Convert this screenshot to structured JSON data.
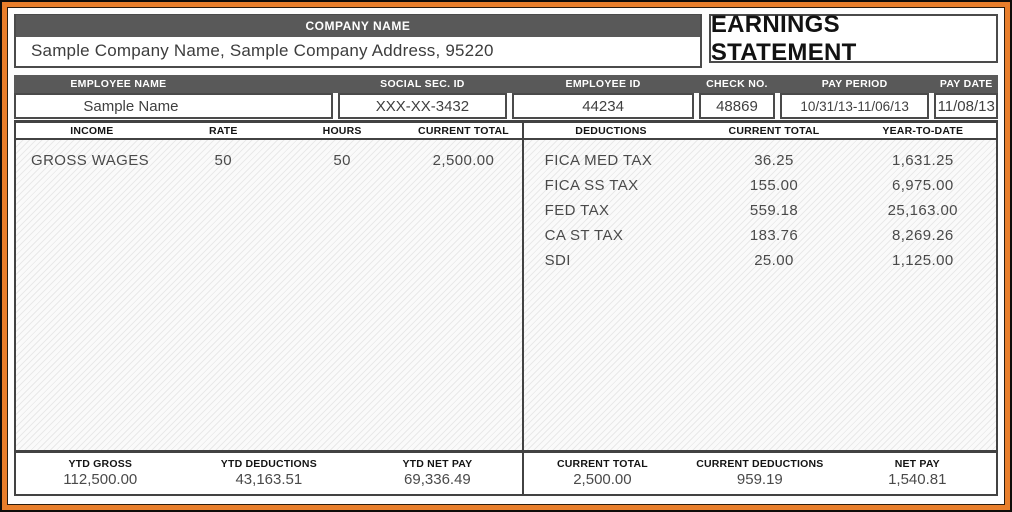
{
  "colors": {
    "frame_orange": "#E87E2B",
    "band_gray": "#595959",
    "border_gray": "#424242",
    "heading_text": "#141414",
    "value_text": "#4A4A4A"
  },
  "header": {
    "company_bar_label": "COMPANY NAME",
    "company_info": "Sample Company Name, Sample Company Address, 95220",
    "title": "EARNINGS STATEMENT"
  },
  "employee": {
    "columns": [
      {
        "label": "EMPLOYEE NAME",
        "value": "Sample Name"
      },
      {
        "label": "SOCIAL SEC. ID",
        "value": "XXX-XX-3432"
      },
      {
        "label": "EMPLOYEE ID",
        "value": "44234"
      },
      {
        "label": "CHECK NO.",
        "value": "48869"
      },
      {
        "label": "PAY PERIOD",
        "value": "10/31/13-11/06/13"
      },
      {
        "label": "PAY DATE",
        "value": "11/08/13"
      }
    ]
  },
  "income": {
    "headers": [
      "INCOME",
      "RATE",
      "HOURS",
      "CURRENT TOTAL"
    ],
    "rows": [
      {
        "income": "GROSS WAGES",
        "rate": "50",
        "hours": "50",
        "current_total": "2,500.00"
      }
    ]
  },
  "deductions": {
    "headers": [
      "DEDUCTIONS",
      "CURRENT TOTAL",
      "YEAR-TO-DATE"
    ],
    "rows": [
      {
        "name": "FICA MED TAX",
        "current": "36.25",
        "ytd": "1,631.25"
      },
      {
        "name": "FICA SS TAX",
        "current": "155.00",
        "ytd": "6,975.00"
      },
      {
        "name": "FED TAX",
        "current": "559.18",
        "ytd": "25,163.00"
      },
      {
        "name": "CA ST TAX",
        "current": "183.76",
        "ytd": "8,269.26"
      },
      {
        "name": "SDI",
        "current": "25.00",
        "ytd": "1,125.00"
      }
    ]
  },
  "summary": {
    "ytd": [
      {
        "label": "YTD GROSS",
        "value": "112,500.00"
      },
      {
        "label": "YTD DEDUCTIONS",
        "value": "43,163.51"
      },
      {
        "label": "YTD NET PAY",
        "value": "69,336.49"
      }
    ],
    "current": [
      {
        "label": "CURRENT TOTAL",
        "value": "2,500.00"
      },
      {
        "label": "CURRENT DEDUCTIONS",
        "value": "959.19"
      },
      {
        "label": "NET PAY",
        "value": "1,540.81"
      }
    ]
  }
}
